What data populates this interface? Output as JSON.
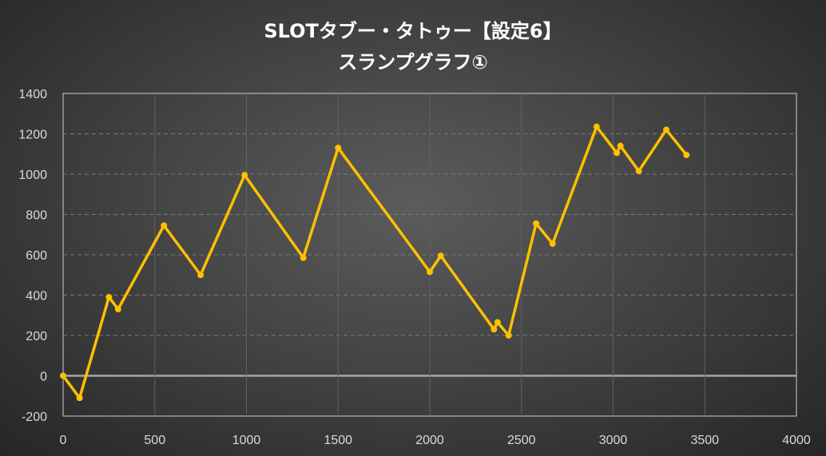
{
  "chart_data": {
    "type": "line",
    "title": "SLOTタブー・タトゥー【設定6】",
    "subtitle": "スランプグラフ①",
    "xlabel": "",
    "ylabel": "",
    "xlim": [
      0,
      4000
    ],
    "ylim": [
      -200,
      1400
    ],
    "x_ticks": [
      0,
      500,
      1000,
      1500,
      2000,
      2500,
      3000,
      3500,
      4000
    ],
    "y_ticks": [
      -200,
      0,
      200,
      400,
      600,
      800,
      1000,
      1200,
      1400
    ],
    "grid": true,
    "legend": "none",
    "series": [
      {
        "color": "#ffc000",
        "points": [
          [
            0,
            0
          ],
          [
            90,
            -110
          ],
          [
            250,
            390
          ],
          [
            300,
            330
          ],
          [
            550,
            745
          ],
          [
            750,
            500
          ],
          [
            990,
            995
          ],
          [
            1310,
            585
          ],
          [
            1500,
            1130
          ],
          [
            2000,
            515
          ],
          [
            2060,
            595
          ],
          [
            2350,
            230
          ],
          [
            2370,
            265
          ],
          [
            2430,
            200
          ],
          [
            2580,
            755
          ],
          [
            2670,
            655
          ],
          [
            2910,
            1235
          ],
          [
            3020,
            1105
          ],
          [
            3040,
            1140
          ],
          [
            3140,
            1015
          ],
          [
            3290,
            1220
          ],
          [
            3400,
            1095
          ]
        ]
      }
    ]
  }
}
